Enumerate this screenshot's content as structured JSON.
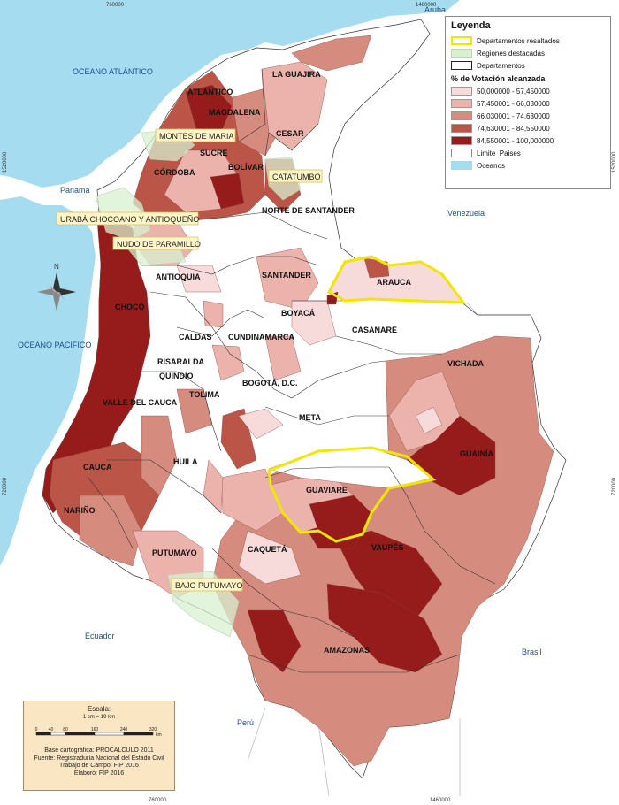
{
  "legend": {
    "title": "Leyenda",
    "items": [
      {
        "label": "Departamentos resaltados",
        "fill": "#ffffff",
        "stroke": "#f0e600"
      },
      {
        "label": "Regiones destacadas",
        "fill": "#d8f0d0",
        "stroke": "#b8d8b0"
      },
      {
        "label": "Departamentos",
        "fill": "#ffffff",
        "stroke": "#222222"
      }
    ],
    "scale_title": "% de Votación alcanzada",
    "classes": [
      {
        "label": "50,000000 - 57,450000",
        "color": "#f7dada"
      },
      {
        "label": "57,450001 - 66,030000",
        "color": "#ebb3ac"
      },
      {
        "label": "66,030001 - 74,630000",
        "color": "#d58c7e"
      },
      {
        "label": "74,630001 - 84,550000",
        "color": "#bb5548"
      },
      {
        "label": "84,550001 - 100,000000",
        "color": "#961b1b"
      }
    ],
    "extra": [
      {
        "label": "Limite_Paises",
        "fill": "#ffffff",
        "stroke": "#888888"
      },
      {
        "label": "Oceanos",
        "fill": "#a6dcf0",
        "stroke": "#a6dcf0"
      }
    ]
  },
  "map": {
    "seas": [
      "OCEANO ATLÁNTICO",
      "OCEANO PACÍFICO"
    ],
    "countries": [
      "Aruba",
      "Panamá",
      "Venezuela",
      "Ecuador",
      "Perú",
      "Brasil"
    ],
    "north": "N",
    "coords": {
      "top_left": "760000",
      "top_right": "1460000",
      "bottom_left": "760000",
      "bottom_right": "1460000",
      "left_upper": "1520000",
      "left_lower": "720000",
      "right_upper": "1520000",
      "right_lower": "720000"
    },
    "departments": [
      "LA GUAJIRA",
      "ATLÁNTICO",
      "MAGDALENA",
      "CESAR",
      "SUCRE",
      "BOLÍVAR",
      "CÓRDOBA",
      "NORTE DE SANTANDER",
      "ANTIOQUIA",
      "SANTANDER",
      "ARAUCA",
      "BOYACÁ",
      "CHOCÓ",
      "CASANARE",
      "CALDAS",
      "CUNDINAMARCA",
      "VICHADA",
      "RISARALDA",
      "QUINDÍO",
      "BOGOTÁ, D.C.",
      "TOLIMA",
      "VALLE DEL CAUCA",
      "META",
      "GUAINÍA",
      "CAUCA",
      "HUILA",
      "GUAVIARE",
      "NARIÑO",
      "PUTUMAYO",
      "CAQUETÁ",
      "VAUPÉS",
      "AMAZONAS"
    ],
    "regions": [
      "MONTES DE MARIA",
      "CATATUMBO",
      "URABÁ CHOCOANO Y ANTIOQUEÑO",
      "NUDO DE PARAMILLO",
      "BAJO PUTUMAYO"
    ]
  },
  "scale": {
    "title": "Escala:",
    "ratio": "1 cm = 19 km",
    "ticks": [
      "0",
      "40",
      "80",
      "160",
      "240",
      "320"
    ],
    "unit": "km",
    "credits": [
      "Base cartográfica: PROCALCULO 2011",
      "Fuente: Registraduría Nacional del Estado Civil",
      "Trabajo de Campo: FIP 2016",
      "Elaboró: FIP 2016"
    ]
  }
}
